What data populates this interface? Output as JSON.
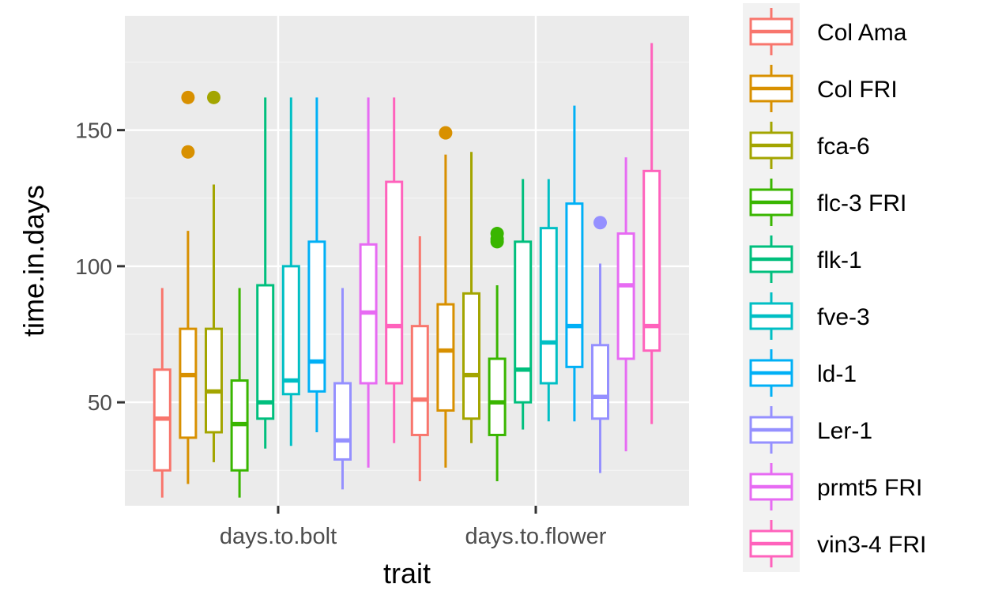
{
  "chart_data": {
    "type": "boxplot",
    "title": "",
    "xlabel": "trait",
    "ylabel": "time.in.days",
    "ylim": [
      12,
      192
    ],
    "yticks": [
      50,
      100,
      150
    ],
    "ytick_labels": [
      "50",
      "100",
      "150"
    ],
    "y_minor_gridlines": [
      25,
      75,
      125,
      175
    ],
    "grid": true,
    "legend_position": "right",
    "categories": [
      "days.to.bolt",
      "days.to.flower"
    ],
    "series": [
      {
        "name": "Col Ama",
        "color": "#F8766D",
        "boxes": [
          {
            "whisker_low": 15,
            "q1": 25,
            "median": 44,
            "q3": 62,
            "whisker_high": 92,
            "outliers": []
          },
          {
            "whisker_low": 21,
            "q1": 38,
            "median": 51,
            "q3": 78,
            "whisker_high": 111,
            "outliers": []
          }
        ]
      },
      {
        "name": "Col FRI",
        "color": "#D89000",
        "boxes": [
          {
            "whisker_low": 20,
            "q1": 37,
            "median": 60,
            "q3": 77,
            "whisker_high": 113,
            "outliers": [
              142,
              162
            ]
          },
          {
            "whisker_low": 26,
            "q1": 47,
            "median": 69,
            "q3": 86,
            "whisker_high": 141,
            "outliers": [
              149
            ]
          }
        ]
      },
      {
        "name": "fca-6",
        "color": "#A3A500",
        "boxes": [
          {
            "whisker_low": 28,
            "q1": 39,
            "median": 54,
            "q3": 77,
            "whisker_high": 130,
            "outliers": [
              162
            ]
          },
          {
            "whisker_low": 35,
            "q1": 44,
            "median": 60,
            "q3": 90,
            "whisker_high": 142,
            "outliers": []
          }
        ]
      },
      {
        "name": "flc-3 FRI",
        "color": "#39B600",
        "boxes": [
          {
            "whisker_low": 15,
            "q1": 25,
            "median": 42,
            "q3": 58,
            "whisker_high": 92,
            "outliers": []
          },
          {
            "whisker_low": 21,
            "q1": 38,
            "median": 50,
            "q3": 66,
            "whisker_high": 93,
            "outliers": [
              109,
              110,
              112
            ]
          }
        ]
      },
      {
        "name": "flk-1",
        "color": "#00BF7D",
        "boxes": [
          {
            "whisker_low": 33,
            "q1": 44,
            "median": 50,
            "q3": 93,
            "whisker_high": 162,
            "outliers": []
          },
          {
            "whisker_low": 40,
            "q1": 50,
            "median": 62,
            "q3": 109,
            "whisker_high": 132,
            "outliers": []
          }
        ]
      },
      {
        "name": "fve-3",
        "color": "#00BFC4",
        "boxes": [
          {
            "whisker_low": 34,
            "q1": 53,
            "median": 58,
            "q3": 100,
            "whisker_high": 162,
            "outliers": []
          },
          {
            "whisker_low": 43,
            "q1": 57,
            "median": 72,
            "q3": 114,
            "whisker_high": 132,
            "outliers": []
          }
        ]
      },
      {
        "name": "ld-1",
        "color": "#00B0F6",
        "boxes": [
          {
            "whisker_low": 39,
            "q1": 54,
            "median": 65,
            "q3": 109,
            "whisker_high": 162,
            "outliers": []
          },
          {
            "whisker_low": 43,
            "q1": 63,
            "median": 78,
            "q3": 123,
            "whisker_high": 159,
            "outliers": []
          }
        ]
      },
      {
        "name": "Ler-1",
        "color": "#9590FF",
        "boxes": [
          {
            "whisker_low": 18,
            "q1": 29,
            "median": 36,
            "q3": 57,
            "whisker_high": 92,
            "outliers": []
          },
          {
            "whisker_low": 24,
            "q1": 44,
            "median": 52,
            "q3": 71,
            "whisker_high": 101,
            "outliers": [
              116
            ]
          }
        ]
      },
      {
        "name": "prmt5 FRI",
        "color": "#E76BF3",
        "boxes": [
          {
            "whisker_low": 26,
            "q1": 57,
            "median": 83,
            "q3": 108,
            "whisker_high": 162,
            "outliers": []
          },
          {
            "whisker_low": 32,
            "q1": 66,
            "median": 93,
            "q3": 112,
            "whisker_high": 140,
            "outliers": []
          }
        ]
      },
      {
        "name": "vin3-4 FRI",
        "color": "#FF62BC",
        "boxes": [
          {
            "whisker_low": 35,
            "q1": 57,
            "median": 78,
            "q3": 131,
            "whisker_high": 162,
            "outliers": []
          },
          {
            "whisker_low": 42,
            "q1": 69,
            "median": 78,
            "q3": 135,
            "whisker_high": 182,
            "outliers": []
          }
        ]
      }
    ]
  }
}
